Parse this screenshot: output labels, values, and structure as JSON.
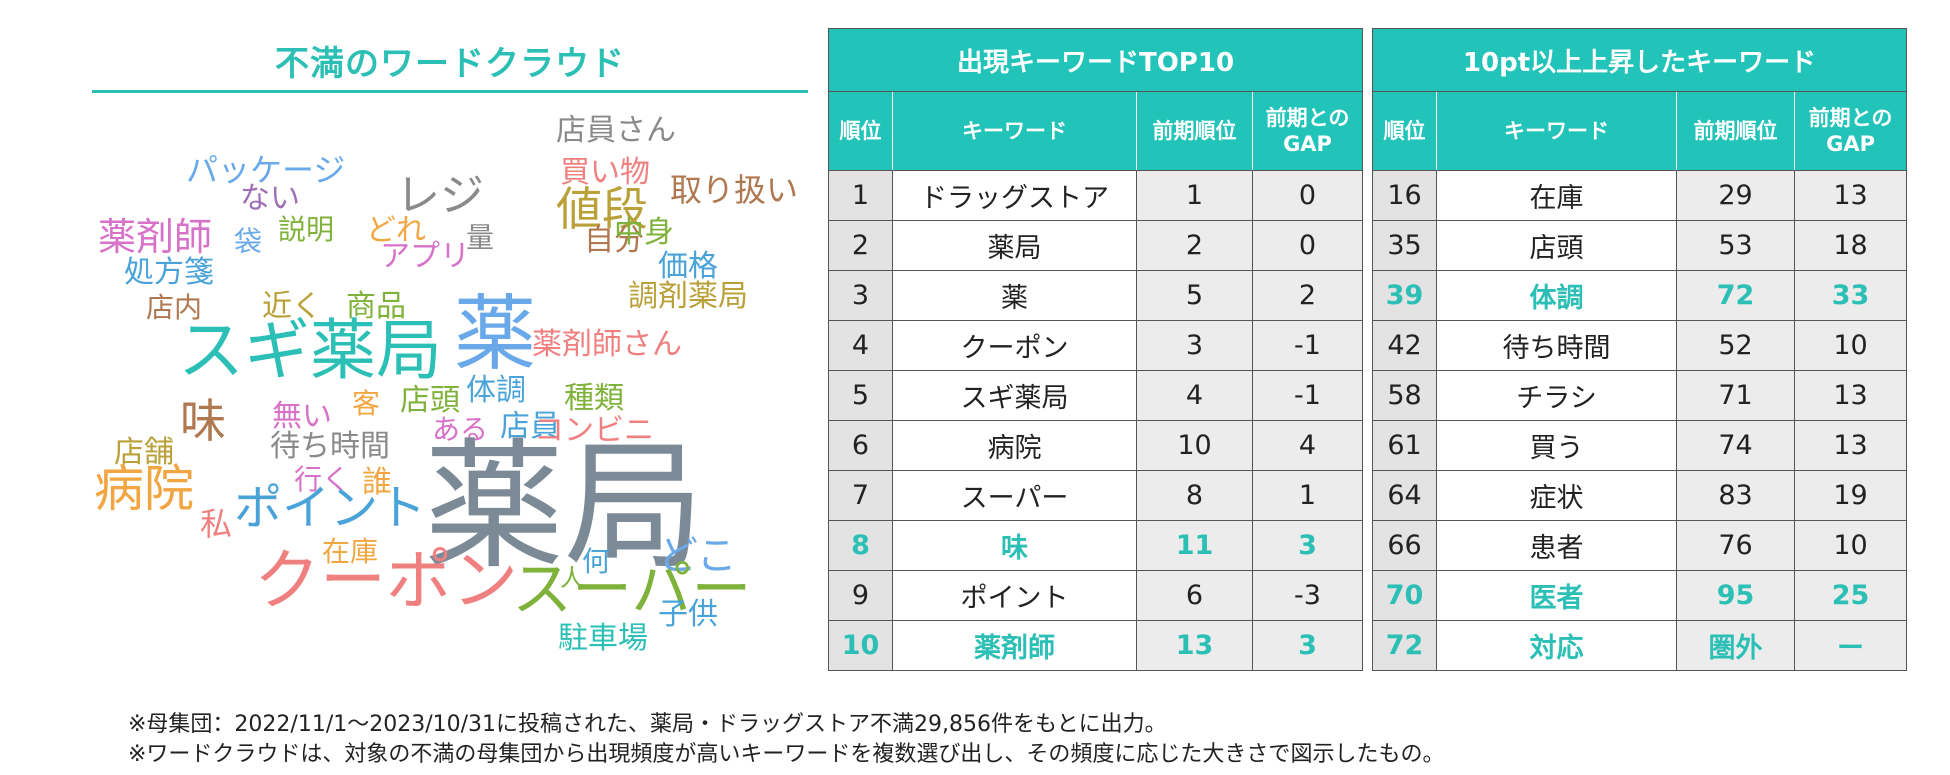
{
  "word_cloud": {
    "title": "不満のワードクラウド",
    "words": [
      {
        "text": "店員さん",
        "color": "#8a8a8a"
      },
      {
        "text": "パッケージ",
        "color": "#6aa9e9"
      },
      {
        "text": "レジ",
        "color": "#8a8a8a"
      },
      {
        "text": "買い物",
        "color": "#f08080"
      },
      {
        "text": "取り扱い",
        "color": "#b07850"
      },
      {
        "text": "ない",
        "color": "#9f6fb5"
      },
      {
        "text": "値段",
        "color": "#b9a038"
      },
      {
        "text": "薬剤師",
        "color": "#d872c9"
      },
      {
        "text": "袋",
        "color": "#6aa9e9"
      },
      {
        "text": "説明",
        "color": "#7fb23a"
      },
      {
        "text": "どれ",
        "color": "#f1a642"
      },
      {
        "text": "量",
        "color": "#8a8a8a"
      },
      {
        "text": "自分",
        "color": "#b07850"
      },
      {
        "text": "中身",
        "color": "#7fb23a"
      },
      {
        "text": "アプリ",
        "color": "#d872c9"
      },
      {
        "text": "処方箋",
        "color": "#4aa3d8"
      },
      {
        "text": "価格",
        "color": "#4aa3d8"
      },
      {
        "text": "調剤薬局",
        "color": "#b9a038"
      },
      {
        "text": "店内",
        "color": "#b07850"
      },
      {
        "text": "近く",
        "color": "#b9a038"
      },
      {
        "text": "商品",
        "color": "#7fb23a"
      },
      {
        "text": "スギ薬局",
        "color": "#2bbfb5"
      },
      {
        "text": "薬",
        "color": "#6aa9e9"
      },
      {
        "text": "薬剤師さん",
        "color": "#f08080"
      },
      {
        "text": "味",
        "color": "#b07850"
      },
      {
        "text": "無い",
        "color": "#d872c9"
      },
      {
        "text": "客",
        "color": "#f1a642"
      },
      {
        "text": "店頭",
        "color": "#7fb23a"
      },
      {
        "text": "体調",
        "color": "#4aa3d8"
      },
      {
        "text": "種類",
        "color": "#7fb23a"
      },
      {
        "text": "店舗",
        "color": "#b9a038"
      },
      {
        "text": "待ち時間",
        "color": "#8a8a8a"
      },
      {
        "text": "ある",
        "color": "#d872c9"
      },
      {
        "text": "店員",
        "color": "#4aa3d8"
      },
      {
        "text": "コンビニ",
        "color": "#f08080"
      },
      {
        "text": "病院",
        "color": "#f1a642"
      },
      {
        "text": "行く",
        "color": "#d872c9"
      },
      {
        "text": "誰",
        "color": "#f1a642"
      },
      {
        "text": "ポイント",
        "color": "#4aa3d8"
      },
      {
        "text": "私",
        "color": "#f08080"
      },
      {
        "text": "薬局",
        "color": "#7b8a96"
      },
      {
        "text": "在庫",
        "color": "#f1a642"
      },
      {
        "text": "どこ",
        "color": "#6aa9e9"
      },
      {
        "text": "何",
        "color": "#4aa3d8"
      },
      {
        "text": "人",
        "color": "#7fb23a"
      },
      {
        "text": "クーポン",
        "color": "#f08080"
      },
      {
        "text": "スーパー",
        "color": "#7fb23a"
      },
      {
        "text": "子供",
        "color": "#4aa3d8"
      },
      {
        "text": "駐車場",
        "color": "#2bbfb5"
      }
    ]
  },
  "table_top10": {
    "title": "出現キーワードTOP10",
    "headers": {
      "rank": "順位",
      "keyword": "キーワード",
      "prev": "前期順位",
      "gap": "前期との\nGAP"
    },
    "rows": [
      {
        "rank": "1",
        "keyword": "ドラッグストア",
        "prev": "1",
        "gap": "0",
        "highlight": false
      },
      {
        "rank": "2",
        "keyword": "薬局",
        "prev": "2",
        "gap": "0",
        "highlight": false
      },
      {
        "rank": "3",
        "keyword": "薬",
        "prev": "5",
        "gap": "2",
        "highlight": false
      },
      {
        "rank": "4",
        "keyword": "クーポン",
        "prev": "3",
        "gap": "-1",
        "highlight": false
      },
      {
        "rank": "5",
        "keyword": "スギ薬局",
        "prev": "4",
        "gap": "-1",
        "highlight": false
      },
      {
        "rank": "6",
        "keyword": "病院",
        "prev": "10",
        "gap": "4",
        "highlight": false
      },
      {
        "rank": "7",
        "keyword": "スーパー",
        "prev": "8",
        "gap": "1",
        "highlight": false
      },
      {
        "rank": "8",
        "keyword": "味",
        "prev": "11",
        "gap": "3",
        "highlight": true
      },
      {
        "rank": "9",
        "keyword": "ポイント",
        "prev": "6",
        "gap": "-3",
        "highlight": false
      },
      {
        "rank": "10",
        "keyword": "薬剤師",
        "prev": "13",
        "gap": "3",
        "highlight": true
      }
    ]
  },
  "table_rising": {
    "title": "10pt以上上昇したキーワード",
    "headers": {
      "rank": "順位",
      "keyword": "キーワード",
      "prev": "前期順位",
      "gap": "前期との\nGAP"
    },
    "rows": [
      {
        "rank": "16",
        "keyword": "在庫",
        "prev": "29",
        "gap": "13",
        "highlight": false
      },
      {
        "rank": "35",
        "keyword": "店頭",
        "prev": "53",
        "gap": "18",
        "highlight": false
      },
      {
        "rank": "39",
        "keyword": "体調",
        "prev": "72",
        "gap": "33",
        "highlight": true
      },
      {
        "rank": "42",
        "keyword": "待ち時間",
        "prev": "52",
        "gap": "10",
        "highlight": false
      },
      {
        "rank": "58",
        "keyword": "チラシ",
        "prev": "71",
        "gap": "13",
        "highlight": false
      },
      {
        "rank": "61",
        "keyword": "買う",
        "prev": "74",
        "gap": "13",
        "highlight": false
      },
      {
        "rank": "64",
        "keyword": "症状",
        "prev": "83",
        "gap": "19",
        "highlight": false
      },
      {
        "rank": "66",
        "keyword": "患者",
        "prev": "76",
        "gap": "10",
        "highlight": false
      },
      {
        "rank": "70",
        "keyword": "医者",
        "prev": "95",
        "gap": "25",
        "highlight": true
      },
      {
        "rank": "72",
        "keyword": "対応",
        "prev": "圏外",
        "gap": "ー",
        "highlight": true
      }
    ]
  },
  "notes": [
    "※母集団：2022/11/1～2023/10/31に投稿された、薬局・ドラッグストア不満29,856件をもとに出力。",
    "※ワードクラウドは、対象の不満の母集団から出現頻度が高いキーワードを複数選び出し、その頻度に応じた大きさで図示したもの。"
  ],
  "colors": {
    "accent": "#22c3b8",
    "highlight_text": "#2bbfb5"
  }
}
